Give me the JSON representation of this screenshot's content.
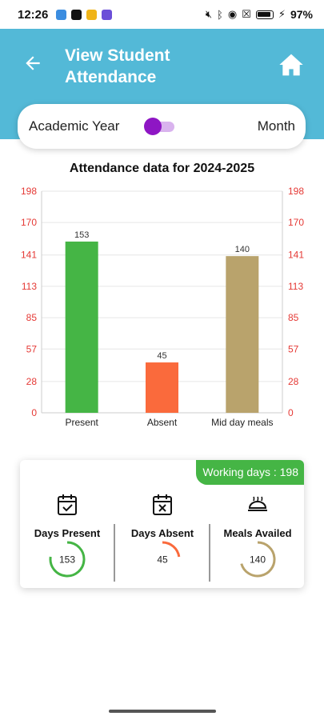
{
  "status_bar": {
    "time": "12:26",
    "battery": "97%",
    "app_colors": [
      "#3b8de0",
      "#111111",
      "#f0b418",
      "#6b4fd8"
    ]
  },
  "header": {
    "title": "View Student Attendance",
    "back_icon": "arrow-left-icon",
    "home_icon": "home-icon",
    "color": "#53b9d7"
  },
  "toggle": {
    "left_label": "Academic Year",
    "right_label": "Month",
    "accent": "#8e16c4"
  },
  "chart_data": {
    "type": "bar",
    "title": "Attendance data for 2024-2025",
    "categories": [
      "Present",
      "Absent",
      "Mid day meals"
    ],
    "values": [
      153,
      45,
      140
    ],
    "colors": [
      "#45b545",
      "#fa6a3c",
      "#b9a36c"
    ],
    "value_labels": [
      "153",
      "45",
      "140"
    ],
    "yticks": [
      "0",
      "28",
      "57",
      "85",
      "113",
      "141",
      "170",
      "198"
    ],
    "ylim": [
      0,
      198
    ],
    "axis_color": "#e53935",
    "grid": true,
    "dual_y_axis": true
  },
  "summary": {
    "working_days": "Working days : 198",
    "total": 198,
    "stats": [
      {
        "label": "Days Present",
        "value": "153",
        "num": 153,
        "color": "#45b545",
        "icon": "calendar-check-icon"
      },
      {
        "label": "Days Absent",
        "value": "45",
        "num": 45,
        "color": "#fa6a3c",
        "icon": "calendar-x-icon"
      },
      {
        "label": "Meals Availed",
        "value": "140",
        "num": 140,
        "color": "#b9a36c",
        "icon": "meal-tray-icon"
      }
    ]
  }
}
